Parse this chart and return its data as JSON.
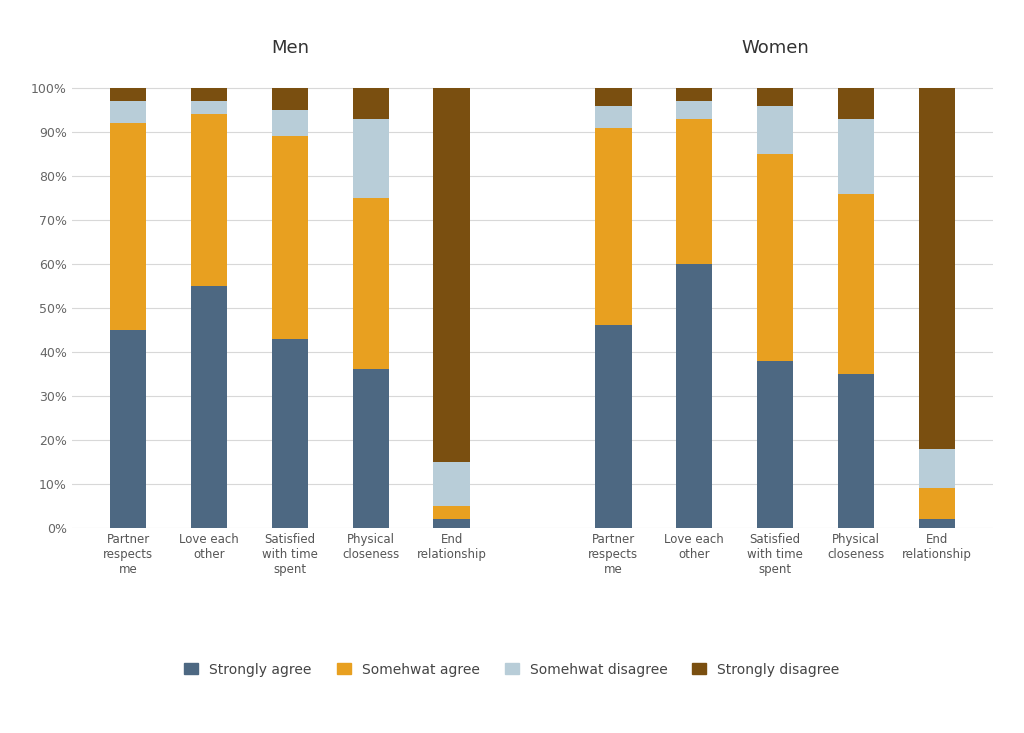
{
  "men": {
    "categories": [
      "Partner\nrespects\nme",
      "Love each\nother",
      "Satisfied\nwith time\nspent",
      "Physical\ncloseness",
      "End\nrelationship"
    ],
    "strongly_agree": [
      45,
      55,
      43,
      36,
      2
    ],
    "somewhat_agree": [
      47,
      39,
      46,
      39,
      3
    ],
    "somewhat_disagree": [
      5,
      3,
      6,
      18,
      10
    ],
    "strongly_disagree": [
      3,
      3,
      5,
      7,
      85
    ]
  },
  "women": {
    "categories": [
      "Partner\nrespects\nme",
      "Love each\nother",
      "Satisfied\nwith time\nspent",
      "Physical\ncloseness",
      "End\nrelationship"
    ],
    "strongly_agree": [
      46,
      60,
      38,
      35,
      2
    ],
    "somewhat_agree": [
      45,
      33,
      47,
      41,
      7
    ],
    "somewhat_disagree": [
      5,
      4,
      11,
      17,
      9
    ],
    "strongly_disagree": [
      4,
      3,
      4,
      7,
      82
    ]
  },
  "colors": {
    "strongly_agree": "#4d6882",
    "somewhat_agree": "#e8a020",
    "somewhat_disagree": "#b8cdd8",
    "strongly_disagree": "#7a4f10"
  },
  "legend_labels": [
    "Strongly agree",
    "Somehwat agree",
    "Somehwat disagree",
    "Strongly disagree"
  ],
  "title_men": "Men",
  "title_women": "Women",
  "bar_width": 0.45,
  "figsize": [
    10.24,
    7.33
  ],
  "dpi": 100,
  "background_color": "#ffffff",
  "plot_bg_color": "#ffffff",
  "grid_color": "#d8d8d8",
  "ylim": [
    0,
    105
  ],
  "yticks": [
    0,
    10,
    20,
    30,
    40,
    50,
    60,
    70,
    80,
    90,
    100
  ],
  "ytick_labels": [
    "0%",
    "10%",
    "20%",
    "30%",
    "40%",
    "50%",
    "60%",
    "70%",
    "80%",
    "90%",
    "100%"
  ]
}
